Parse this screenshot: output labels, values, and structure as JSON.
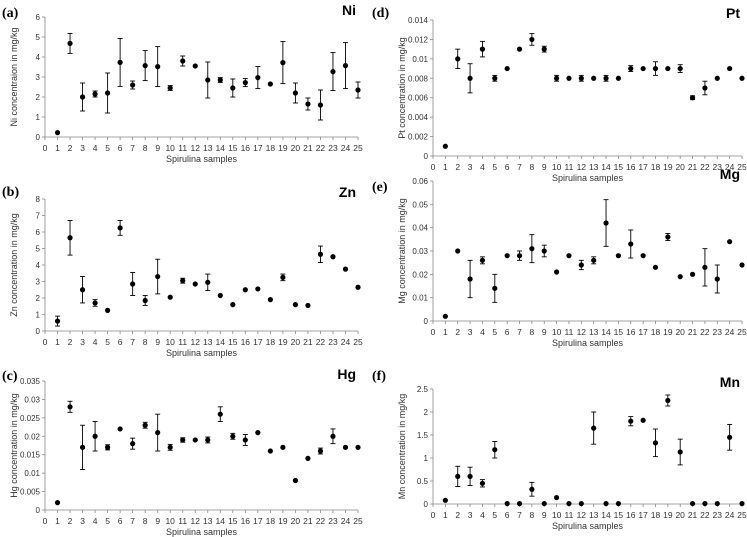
{
  "chart_data": [
    {
      "type": "scatter",
      "panel_label": "(a)",
      "element": "Ni",
      "xlabel": "Spirulina samples",
      "ylabel": "Ni concentraion in mg/kg",
      "ylim": [
        0,
        6
      ],
      "yticks": [
        "0",
        "1",
        "2",
        "3",
        "4",
        "5",
        "6"
      ],
      "xticks": [
        "0",
        "1",
        "2",
        "3",
        "4",
        "5",
        "6",
        "7",
        "8",
        "9",
        "10",
        "11",
        "12",
        "13",
        "14",
        "15",
        "16",
        "17",
        "18",
        "19",
        "20",
        "21",
        "22",
        "23",
        "24",
        "25"
      ],
      "x": [
        1,
        2,
        3,
        4,
        5,
        6,
        7,
        8,
        9,
        10,
        11,
        12,
        13,
        14,
        15,
        16,
        17,
        18,
        19,
        20,
        21,
        22,
        23,
        24,
        25
      ],
      "y": [
        0.22,
        4.68,
        2.0,
        2.15,
        2.2,
        3.73,
        2.6,
        3.57,
        3.52,
        2.45,
        3.8,
        3.55,
        2.85,
        2.85,
        2.45,
        2.72,
        2.97,
        2.65,
        3.72,
        2.2,
        1.65,
        1.6,
        3.27,
        3.57,
        2.35
      ],
      "err": [
        0,
        0.5,
        0.7,
        0.15,
        1.0,
        1.2,
        0.2,
        0.75,
        1.0,
        0.12,
        0.25,
        0,
        0.9,
        0.12,
        0.45,
        0.2,
        0.55,
        0,
        1.05,
        0.5,
        0.3,
        0.75,
        0.95,
        1.15,
        0.4
      ]
    },
    {
      "type": "scatter",
      "panel_label": "(d)",
      "element": "Pt",
      "xlabel": "Spirulina samples",
      "ylabel": "Pt concentration in mg/kg",
      "ylim": [
        0,
        0.014
      ],
      "yticks": [
        "0",
        "0.002",
        "0.004",
        "0.006",
        "0.008",
        "0.01",
        "0.012",
        "0.014"
      ],
      "xticks": [
        "0",
        "1",
        "2",
        "3",
        "4",
        "5",
        "6",
        "7",
        "8",
        "9",
        "10",
        "11",
        "12",
        "13",
        "14",
        "15",
        "16",
        "17",
        "18",
        "19",
        "20",
        "21",
        "22",
        "23",
        "24",
        "25"
      ],
      "x": [
        1,
        2,
        3,
        4,
        5,
        6,
        7,
        8,
        9,
        10,
        11,
        12,
        13,
        14,
        15,
        16,
        17,
        18,
        19,
        20,
        21,
        22,
        23,
        24,
        25
      ],
      "y": [
        0.001,
        0.01,
        0.008,
        0.011,
        0.008,
        0.009,
        0.011,
        0.012,
        0.011,
        0.008,
        0.008,
        0.008,
        0.008,
        0.008,
        0.008,
        0.009,
        0.009,
        0.009,
        0.009,
        0.009,
        0.006,
        0.007,
        0.008,
        0.009,
        0.008
      ],
      "err": [
        0,
        0.001,
        0.0015,
        0.0008,
        0.0003,
        0,
        0,
        0.0006,
        0.0003,
        0.0003,
        0,
        0.0003,
        0,
        0.0003,
        0,
        0.0003,
        0,
        0.0007,
        0,
        0.0004,
        0.0002,
        0.0007,
        0,
        0,
        0
      ]
    },
    {
      "type": "scatter",
      "panel_label": "(b)",
      "element": "Zn",
      "xlabel": "Spirulina samples",
      "ylabel": "Zn concentration in mg/kg",
      "ylim": [
        0,
        8
      ],
      "yticks": [
        "0",
        "1",
        "2",
        "3",
        "4",
        "5",
        "6",
        "7",
        "8"
      ],
      "xticks": [
        "0",
        "1",
        "2",
        "3",
        "4",
        "5",
        "6",
        "7",
        "8",
        "9",
        "10",
        "11",
        "12",
        "13",
        "14",
        "15",
        "16",
        "17",
        "18",
        "19",
        "20",
        "21",
        "22",
        "23",
        "24",
        "25"
      ],
      "x": [
        1,
        2,
        3,
        4,
        5,
        6,
        7,
        8,
        9,
        10,
        11,
        12,
        13,
        14,
        15,
        16,
        17,
        18,
        19,
        20,
        21,
        22,
        23,
        24,
        25
      ],
      "y": [
        0.6,
        5.65,
        2.5,
        1.7,
        1.25,
        6.25,
        2.85,
        1.85,
        3.3,
        2.05,
        3.05,
        2.85,
        2.95,
        2.15,
        1.6,
        2.5,
        2.55,
        1.9,
        3.25,
        1.6,
        1.55,
        4.65,
        4.5,
        3.75,
        2.65
      ],
      "err": [
        0.3,
        1.05,
        0.8,
        0.2,
        0,
        0.45,
        0.7,
        0.3,
        1.05,
        0,
        0.15,
        0,
        0.5,
        0,
        0,
        0,
        0,
        0,
        0.2,
        0,
        0,
        0.5,
        0,
        0,
        0
      ]
    },
    {
      "type": "scatter",
      "panel_label": "(e)",
      "element": "Mg",
      "xlabel": "Spirulina samples",
      "ylabel": "Mg concentration in mg/kg",
      "ylim": [
        0,
        0.06
      ],
      "yticks": [
        "0",
        "0.01",
        "0.02",
        "0.03",
        "0.04",
        "0.05",
        "0.06"
      ],
      "xticks": [
        "0",
        "1",
        "2",
        "3",
        "4",
        "5",
        "6",
        "7",
        "8",
        "9",
        "10",
        "11",
        "12",
        "13",
        "14",
        "15",
        "16",
        "17",
        "18",
        "19",
        "20",
        "21",
        "22",
        "23",
        "24",
        "25"
      ],
      "x": [
        1,
        2,
        3,
        4,
        5,
        6,
        7,
        8,
        9,
        10,
        11,
        12,
        13,
        14,
        15,
        16,
        17,
        18,
        19,
        20,
        21,
        22,
        23,
        24,
        25
      ],
      "y": [
        0.002,
        0.03,
        0.018,
        0.026,
        0.014,
        0.028,
        0.028,
        0.031,
        0.03,
        0.021,
        0.028,
        0.024,
        0.026,
        0.042,
        0.028,
        0.033,
        0.028,
        0.023,
        0.036,
        0.019,
        0.02,
        0.023,
        0.018,
        0.034,
        0.024
      ],
      "err": [
        0,
        0,
        0.008,
        0.0015,
        0.006,
        0,
        0.002,
        0.006,
        0.0025,
        0,
        0,
        0.002,
        0.0015,
        0.01,
        0,
        0.006,
        0,
        0,
        0.0015,
        0,
        0,
        0.008,
        0.006,
        0,
        0
      ]
    },
    {
      "type": "scatter",
      "panel_label": "(c)",
      "element": "Hg",
      "xlabel": "Spirulina samples",
      "ylabel": "Hg concentration in mg/kg",
      "ylim": [
        0,
        0.035
      ],
      "yticks": [
        "0",
        "0.005",
        "0.01",
        "0.015",
        "0.02",
        "0.025",
        "0.03",
        "0.035"
      ],
      "xticks": [
        "0",
        "1",
        "2",
        "3",
        "4",
        "5",
        "6",
        "7",
        "8",
        "9",
        "10",
        "11",
        "12",
        "13",
        "14",
        "15",
        "16",
        "17",
        "18",
        "19",
        "20",
        "21",
        "22",
        "23",
        "24",
        "25"
      ],
      "x": [
        1,
        2,
        3,
        4,
        5,
        6,
        7,
        8,
        9,
        10,
        11,
        12,
        13,
        14,
        15,
        16,
        17,
        18,
        19,
        20,
        21,
        22,
        23,
        24,
        25
      ],
      "y": [
        0.002,
        0.028,
        0.017,
        0.02,
        0.017,
        0.022,
        0.018,
        0.023,
        0.021,
        0.017,
        0.019,
        0.019,
        0.019,
        0.026,
        0.02,
        0.019,
        0.021,
        0.016,
        0.017,
        0.008,
        0.014,
        0.016,
        0.02,
        0.017,
        0.017
      ],
      "err": [
        0,
        0.0015,
        0.006,
        0.004,
        0.0007,
        0,
        0.0015,
        0.0008,
        0.005,
        0.0008,
        0.0006,
        0,
        0.0008,
        0.002,
        0.0008,
        0.0015,
        0,
        0,
        0,
        0,
        0,
        0.0008,
        0.002,
        0,
        0
      ]
    },
    {
      "type": "scatter",
      "panel_label": "(f)",
      "element": "Mn",
      "xlabel": "Spirulina samples",
      "ylabel": "Mn concentration in mg/kg",
      "ylim": [
        0,
        2.5
      ],
      "yticks": [
        "0",
        "0.5",
        "1",
        "1.5",
        "2",
        "2.5"
      ],
      "xticks": [
        "0",
        "1",
        "2",
        "3",
        "4",
        "5",
        "6",
        "7",
        "8",
        "9",
        "10",
        "11",
        "12",
        "13",
        "14",
        "15",
        "16",
        "17",
        "18",
        "19",
        "20",
        "21",
        "22",
        "23",
        "24",
        "25"
      ],
      "x": [
        1,
        2,
        3,
        4,
        5,
        6,
        7,
        8,
        9,
        10,
        11,
        12,
        13,
        14,
        15,
        16,
        17,
        18,
        19,
        20,
        21,
        22,
        23,
        24,
        25
      ],
      "y": [
        0.08,
        0.6,
        0.6,
        0.45,
        1.18,
        0.01,
        0.01,
        0.32,
        0.01,
        0.14,
        0.01,
        0.01,
        1.65,
        0.01,
        0.01,
        1.8,
        1.82,
        1.33,
        2.25,
        1.13,
        0.01,
        0.01,
        0.01,
        1.45,
        0.01
      ],
      "err": [
        0,
        0.22,
        0.2,
        0.08,
        0.18,
        0,
        0,
        0.15,
        0,
        0,
        0,
        0,
        0.35,
        0,
        0,
        0.1,
        0,
        0.3,
        0.12,
        0.28,
        0,
        0,
        0,
        0.28,
        0
      ]
    }
  ]
}
